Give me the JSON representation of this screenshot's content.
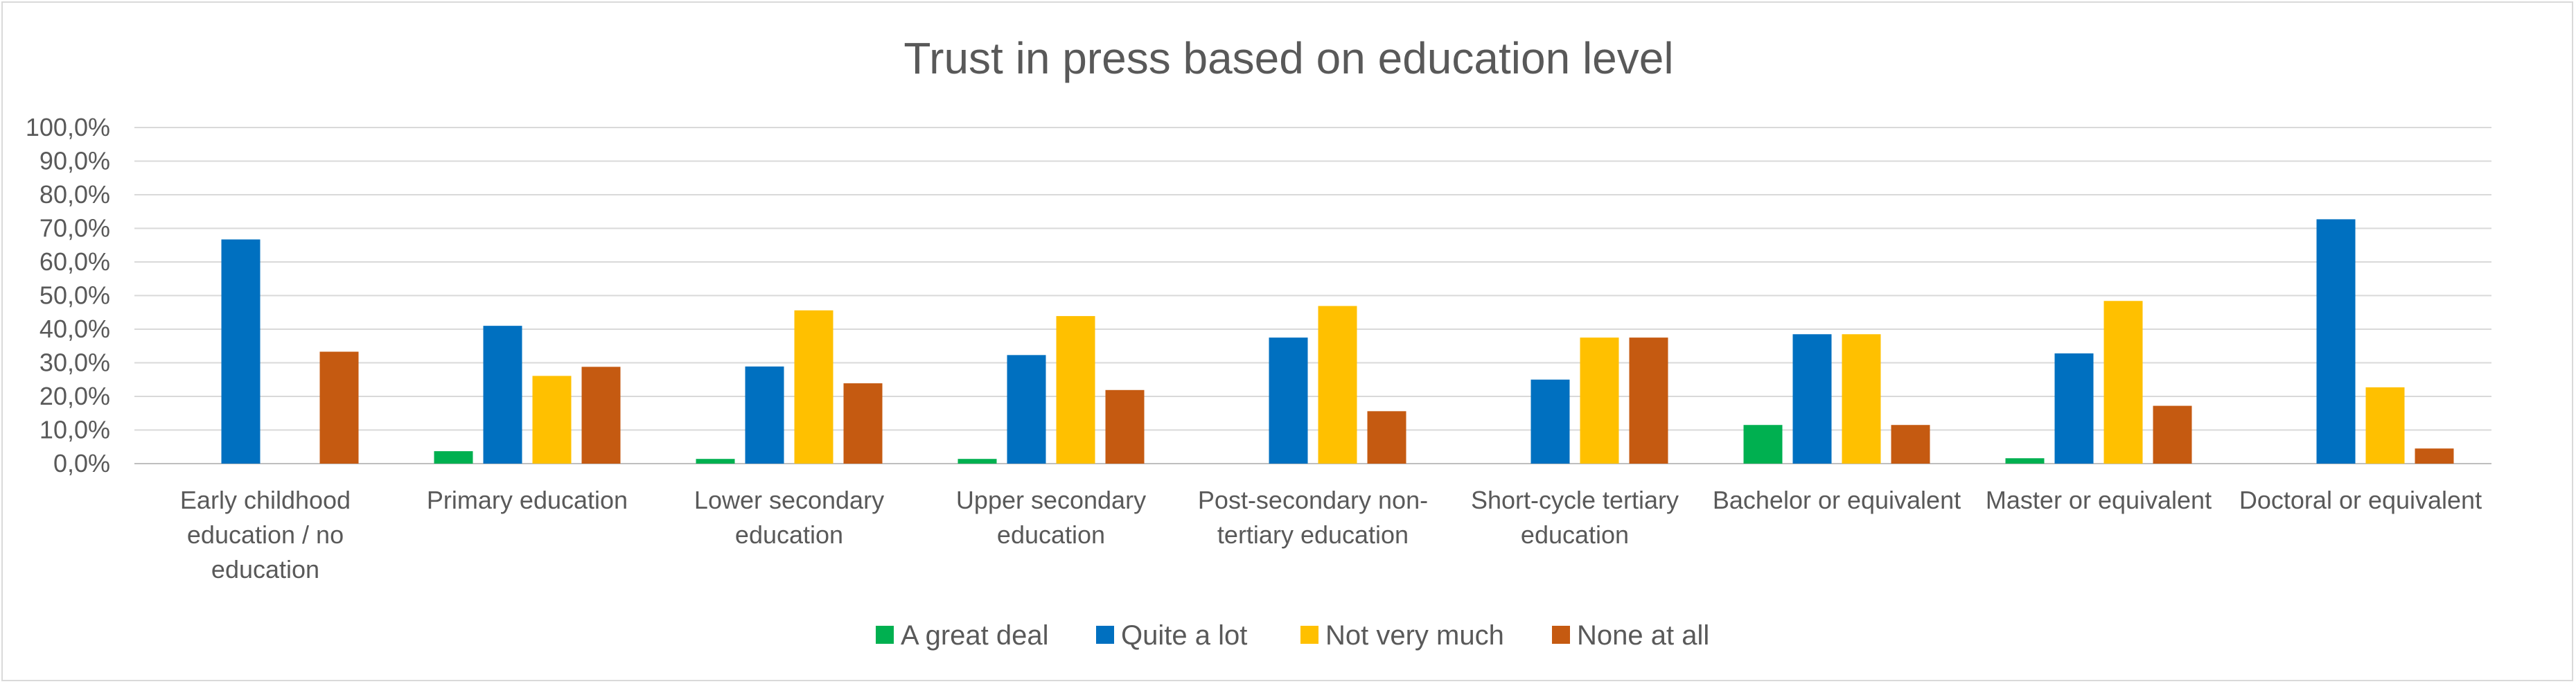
{
  "chart_data": {
    "type": "bar",
    "title": "Trust in press based on education level",
    "categories": [
      "Early childhood education  / no education",
      "Primary education",
      "Lower secondary education",
      "Upper secondary education",
      "Post-secondary non-tertiary education",
      "Short-cycle tertiary education",
      "Bachelor or equivalent",
      "Master or equivalent",
      "Doctoral or equivalent"
    ],
    "category_lines": [
      [
        "Early childhood",
        "education  / no",
        "education"
      ],
      [
        "Primary education"
      ],
      [
        "Lower secondary",
        "education"
      ],
      [
        "Upper secondary",
        "education"
      ],
      [
        "Post-secondary non-",
        "tertiary education"
      ],
      [
        "Short-cycle tertiary",
        "education"
      ],
      [
        "Bachelor or equivalent"
      ],
      [
        "Master or equivalent"
      ],
      [
        "Doctoral or equivalent"
      ]
    ],
    "series": [
      {
        "name": "A great deal",
        "color": "#00b050",
        "values": [
          0,
          3.7,
          1.4,
          1.4,
          0,
          0,
          11.5,
          1.6,
          0
        ]
      },
      {
        "name": "Quite a lot",
        "color": "#0070c0",
        "values": [
          66.7,
          41.0,
          28.9,
          32.3,
          37.5,
          25.0,
          38.5,
          32.8,
          72.7
        ]
      },
      {
        "name": "Not very much",
        "color": "#ffc000",
        "values": [
          0,
          26.1,
          45.6,
          43.9,
          46.9,
          37.5,
          38.5,
          48.4,
          22.7
        ]
      },
      {
        "name": "None at all",
        "color": "#c55a11",
        "values": [
          33.3,
          28.8,
          23.9,
          21.9,
          15.6,
          37.5,
          11.5,
          17.2,
          4.5
        ]
      }
    ],
    "ylim": [
      0,
      100
    ],
    "yticks": [
      "0,0%",
      "10,0%",
      "20,0%",
      "30,0%",
      "40,0%",
      "50,0%",
      "60,0%",
      "70,0%",
      "80,0%",
      "90,0%",
      "100,0%"
    ],
    "grid": true,
    "legend_position": "bottom"
  }
}
